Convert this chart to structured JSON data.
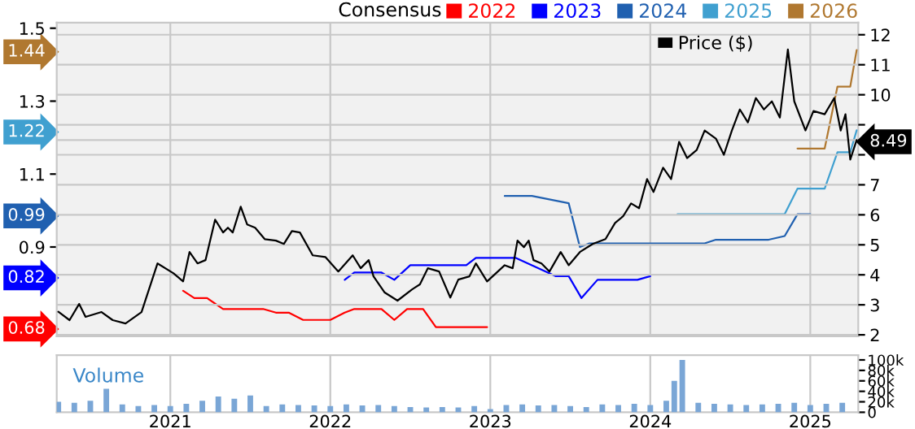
{
  "chart_data": [
    {
      "type": "line",
      "legend_title": "Consensus",
      "legend": "top",
      "grid": true,
      "tick_labels": "y",
      "xlim": [
        2020.29,
        2025.3
      ],
      "xticks": [
        2021,
        2022,
        2023,
        2024,
        2025
      ],
      "ylim": [
        0.655,
        1.515
      ],
      "yticks": [
        0.68,
        0.82,
        0.9,
        0.99,
        1.1,
        1.22,
        1.3,
        1.44,
        1.5
      ],
      "y2lim": [
        1.95,
        12.4
      ],
      "y2ticks": [
        2,
        3,
        4,
        5,
        6,
        7,
        {
          "value": 8,
          "label": null
        },
        8.49,
        {
          "value": 9,
          "label": null
        },
        10,
        11,
        12
      ],
      "series": [
        {
          "name": "2022",
          "color": "#ff0000",
          "x": [
            2021.08,
            2021.15,
            2021.23,
            2021.33,
            2021.58,
            2021.66,
            2021.74,
            2021.83,
            2021.9,
            2022.0,
            2022.09,
            2022.15,
            2022.32,
            2022.4,
            2022.48,
            2022.58,
            2022.66,
            2022.98
          ],
          "values": [
            0.78,
            0.76,
            0.76,
            0.73,
            0.73,
            0.72,
            0.72,
            0.7,
            0.7,
            0.7,
            0.72,
            0.73,
            0.73,
            0.7,
            0.73,
            0.73,
            0.68,
            0.68
          ]
        },
        {
          "name": "2023",
          "color": "#0000ff",
          "x": [
            2022.09,
            2022.15,
            2022.32,
            2022.4,
            2022.5,
            2022.85,
            2022.91,
            2023.16,
            2023.41,
            2023.49,
            2023.57,
            2023.67,
            2023.92,
            2024.0
          ],
          "values": [
            0.81,
            0.83,
            0.83,
            0.81,
            0.85,
            0.85,
            0.87,
            0.87,
            0.82,
            0.82,
            0.76,
            0.81,
            0.81,
            0.82
          ]
        },
        {
          "name": "2024",
          "color": "#2060b0",
          "x": [
            2023.09,
            2023.26,
            2023.49,
            2023.56,
            2023.62,
            2024.34,
            2024.41,
            2024.74,
            2024.84,
            2024.92,
            2025.0
          ],
          "values": [
            1.04,
            1.04,
            1.02,
            0.9,
            0.91,
            0.91,
            0.92,
            0.92,
            0.93,
            0.99,
            0.99
          ]
        },
        {
          "name": "2025",
          "color": "#40a0d0",
          "x": [
            2024.17,
            2024.84,
            2024.92,
            2025.09,
            2025.17,
            2025.25,
            2025.29
          ],
          "values": [
            0.99,
            0.99,
            1.06,
            1.06,
            1.16,
            1.16,
            1.22
          ]
        },
        {
          "name": "2026",
          "color": "#b07830",
          "x": [
            2024.92,
            2025.09,
            2025.17,
            2025.25,
            2025.29
          ],
          "values": [
            1.17,
            1.17,
            1.34,
            1.34,
            1.44
          ]
        },
        {
          "name": "Price ($)",
          "color": "#000000",
          "axis": "y2",
          "x": [
            2020.3,
            2020.37,
            2020.43,
            2020.47,
            2020.57,
            2020.64,
            2020.72,
            2020.82,
            2020.92,
            2021.02,
            2021.08,
            2021.12,
            2021.17,
            2021.22,
            2021.28,
            2021.33,
            2021.36,
            2021.39,
            2021.44,
            2021.48,
            2021.53,
            2021.59,
            2021.66,
            2021.71,
            2021.76,
            2021.81,
            2021.89,
            2021.97,
            2022.05,
            2022.14,
            2022.19,
            2022.24,
            2022.27,
            2022.34,
            2022.42,
            2022.51,
            2022.56,
            2022.61,
            2022.68,
            2022.75,
            2022.8,
            2022.87,
            2022.91,
            2022.98,
            2023.09,
            2023.14,
            2023.17,
            2023.21,
            2023.24,
            2023.27,
            2023.32,
            2023.37,
            2023.44,
            2023.49,
            2023.56,
            2023.64,
            2023.72,
            2023.78,
            2023.83,
            2023.88,
            2023.93,
            2023.98,
            2024.02,
            2024.08,
            2024.13,
            2024.18,
            2024.23,
            2024.29,
            2024.34,
            2024.41,
            2024.46,
            2024.51,
            2024.56,
            2024.61,
            2024.66,
            2024.71,
            2024.76,
            2024.81,
            2024.86,
            2024.9,
            2024.97,
            2025.02,
            2025.09,
            2025.15,
            2025.19,
            2025.22,
            2025.25,
            2025.29
          ],
          "values": [
            2.77,
            2.49,
            3.03,
            2.6,
            2.76,
            2.49,
            2.38,
            2.76,
            4.38,
            4.05,
            3.78,
            4.76,
            4.38,
            4.49,
            5.84,
            5.41,
            5.57,
            5.41,
            6.27,
            5.68,
            5.57,
            5.19,
            5.14,
            5.03,
            5.46,
            5.41,
            4.65,
            4.59,
            4.11,
            4.65,
            4.22,
            4.49,
            3.95,
            3.41,
            3.14,
            3.51,
            3.68,
            4.22,
            4.11,
            3.24,
            3.84,
            3.95,
            4.38,
            3.78,
            4.32,
            4.22,
            5.14,
            4.92,
            5.14,
            4.49,
            4.38,
            4.11,
            4.76,
            4.32,
            4.76,
            5.03,
            5.19,
            5.73,
            5.95,
            6.38,
            6.22,
            7.19,
            6.76,
            7.57,
            7.19,
            8.43,
            7.89,
            8.16,
            8.81,
            8.54,
            8.0,
            8.81,
            9.51,
            9.08,
            9.89,
            9.51,
            9.78,
            9.24,
            11.51,
            9.78,
            8.81,
            9.46,
            9.35,
            9.89,
            8.81,
            9.35,
            7.84,
            8.49
          ]
        }
      ]
    },
    {
      "type": "bar",
      "title": "Volume",
      "grid": "x",
      "xlim": [
        2020.29,
        2025.3
      ],
      "xticks": [
        2021,
        2022,
        2023,
        2024,
        2025
      ],
      "ylim": [
        0,
        109
      ],
      "yticks": [
        0,
        {
          "value": 20,
          "label": "20k"
        },
        {
          "value": 40,
          "label": "40k"
        },
        {
          "value": 60,
          "label": "60k"
        },
        {
          "value": 80,
          "label": "80k"
        },
        {
          "value": 100,
          "label": "100k"
        }
      ],
      "series": [
        {
          "color": "#7aa6d6",
          "x": [
            2020.3,
            2020.4,
            2020.5,
            2020.6,
            2020.7,
            2020.8,
            2020.9,
            2021.0,
            2021.1,
            2021.2,
            2021.3,
            2021.4,
            2021.5,
            2021.6,
            2021.7,
            2021.8,
            2021.9,
            2022.0,
            2022.1,
            2022.2,
            2022.3,
            2022.4,
            2022.5,
            2022.6,
            2022.7,
            2022.8,
            2022.9,
            2023.0,
            2023.1,
            2023.2,
            2023.3,
            2023.4,
            2023.5,
            2023.6,
            2023.7,
            2023.8,
            2023.9,
            2024.0,
            2024.1,
            2024.15,
            2024.2,
            2024.3,
            2024.4,
            2024.5,
            2024.6,
            2024.7,
            2024.8,
            2024.9,
            2025.0,
            2025.1,
            2025.2
          ],
          "values": [
            20,
            18,
            22,
            45,
            15,
            12,
            14,
            12,
            16,
            22,
            30,
            26,
            32,
            12,
            15,
            14,
            13,
            12,
            15,
            13,
            14,
            12,
            10,
            9,
            10,
            9,
            12,
            6,
            14,
            15,
            13,
            14,
            12,
            10,
            15,
            14,
            16,
            14,
            22,
            60,
            100,
            18,
            16,
            15,
            14,
            15,
            16,
            18,
            14,
            16,
            18
          ]
        }
      ]
    }
  ]
}
